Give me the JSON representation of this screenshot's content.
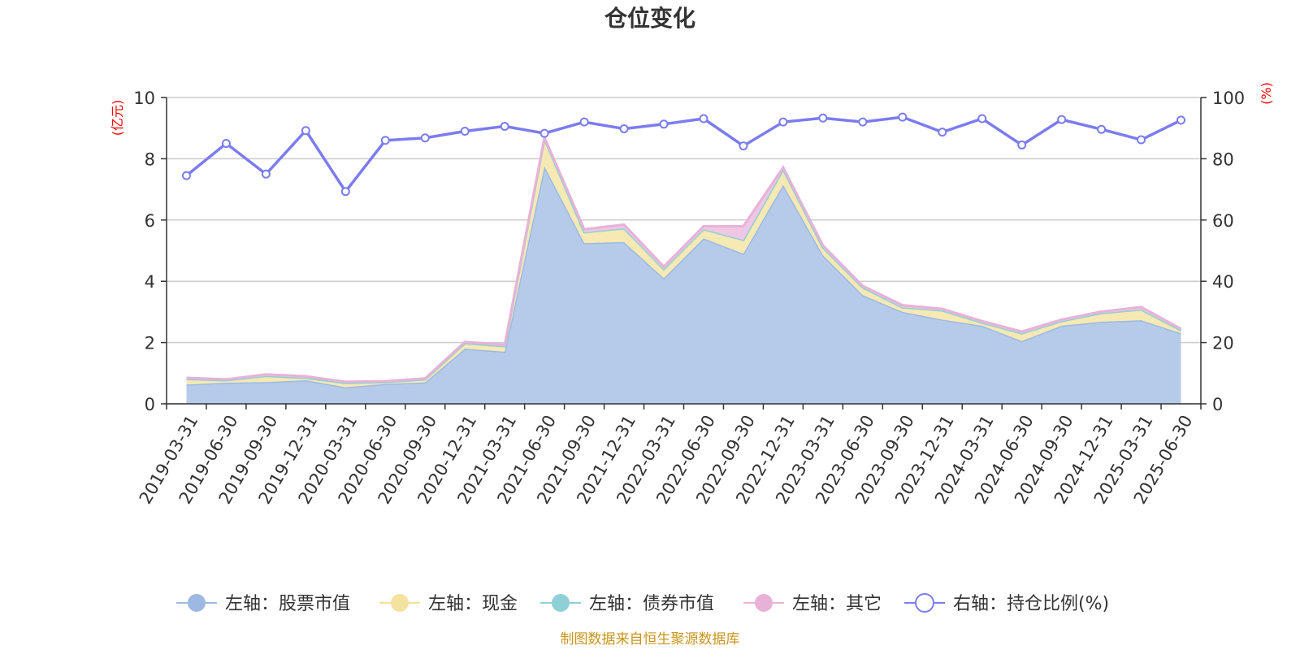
{
  "title": "仓位变化",
  "source": "制图数据来自恒生聚源数据库",
  "chart_data": {
    "type": "area",
    "title": "仓位变化",
    "categories": [
      "2019-03-31",
      "2019-06-30",
      "2019-09-30",
      "2019-12-31",
      "2020-03-31",
      "2020-06-30",
      "2020-09-30",
      "2020-12-31",
      "2021-03-31",
      "2021-06-30",
      "2021-09-30",
      "2021-12-31",
      "2022-03-31",
      "2022-06-30",
      "2022-09-30",
      "2022-12-31",
      "2023-03-31",
      "2023-06-30",
      "2023-09-30",
      "2023-12-31",
      "2024-03-31",
      "2024-06-30",
      "2024-09-30",
      "2024-12-31",
      "2025-03-31",
      "2025-06-30"
    ],
    "left_axis": {
      "unit": "(亿元)",
      "ylim": [
        0,
        10
      ],
      "ticks": [
        0,
        2,
        4,
        6,
        8,
        10
      ]
    },
    "right_axis": {
      "unit": "(%)",
      "ylim": [
        0,
        100
      ],
      "ticks": [
        0,
        20,
        40,
        60,
        80,
        100
      ]
    },
    "stacked": true,
    "grid": true,
    "legend_position": "bottom",
    "series": [
      {
        "name": "左轴：股票市值",
        "axis": "left",
        "color": "#9db9e3",
        "fill": "#b6cbea",
        "values": [
          0.63,
          0.69,
          0.71,
          0.77,
          0.54,
          0.65,
          0.7,
          1.8,
          1.7,
          7.75,
          5.25,
          5.28,
          4.1,
          5.4,
          4.9,
          7.15,
          4.85,
          3.55,
          3.0,
          2.75,
          2.55,
          2.05,
          2.55,
          2.68,
          2.73,
          2.3
        ]
      },
      {
        "name": "左轴：现金",
        "axis": "left",
        "color": "#f4e2a0",
        "fill": "#f7e9b3",
        "values": [
          0.18,
          0.08,
          0.2,
          0.08,
          0.14,
          0.06,
          0.1,
          0.18,
          0.18,
          0.9,
          0.35,
          0.45,
          0.3,
          0.3,
          0.45,
          0.5,
          0.25,
          0.25,
          0.15,
          0.3,
          0.1,
          0.25,
          0.15,
          0.28,
          0.35,
          0.1
        ]
      },
      {
        "name": "左轴：债券市值",
        "axis": "left",
        "color": "#8fd0d6",
        "fill": "#a6dbe0",
        "values": [
          0,
          0,
          0,
          0,
          0,
          0,
          0,
          0,
          0,
          0,
          0,
          0,
          0,
          0,
          0,
          0,
          0,
          0,
          0,
          0,
          0,
          0,
          0,
          0,
          0,
          0
        ]
      },
      {
        "name": "左轴：其它",
        "axis": "left",
        "color": "#e8b2d8",
        "fill": "#efc7e4",
        "values": [
          0.04,
          0.03,
          0.05,
          0.05,
          0.04,
          0.03,
          0.03,
          0.04,
          0.05,
          0.05,
          0.1,
          0.12,
          0.08,
          0.1,
          0.45,
          0.07,
          0.07,
          0.05,
          0.07,
          0.05,
          0.05,
          0.06,
          0.05,
          0.05,
          0.08,
          0.05
        ]
      },
      {
        "name": "右轴：持仓比例(%)",
        "axis": "right",
        "type": "line",
        "color": "#7b7cf0",
        "values": [
          74.5,
          85.0,
          75.0,
          89.2,
          69.3,
          86.0,
          86.8,
          89.0,
          90.6,
          88.3,
          92.0,
          89.8,
          91.3,
          93.1,
          84.2,
          92.0,
          93.3,
          92.0,
          93.6,
          88.7,
          93.1,
          84.5,
          92.8,
          89.6,
          86.2,
          92.6
        ]
      }
    ]
  }
}
